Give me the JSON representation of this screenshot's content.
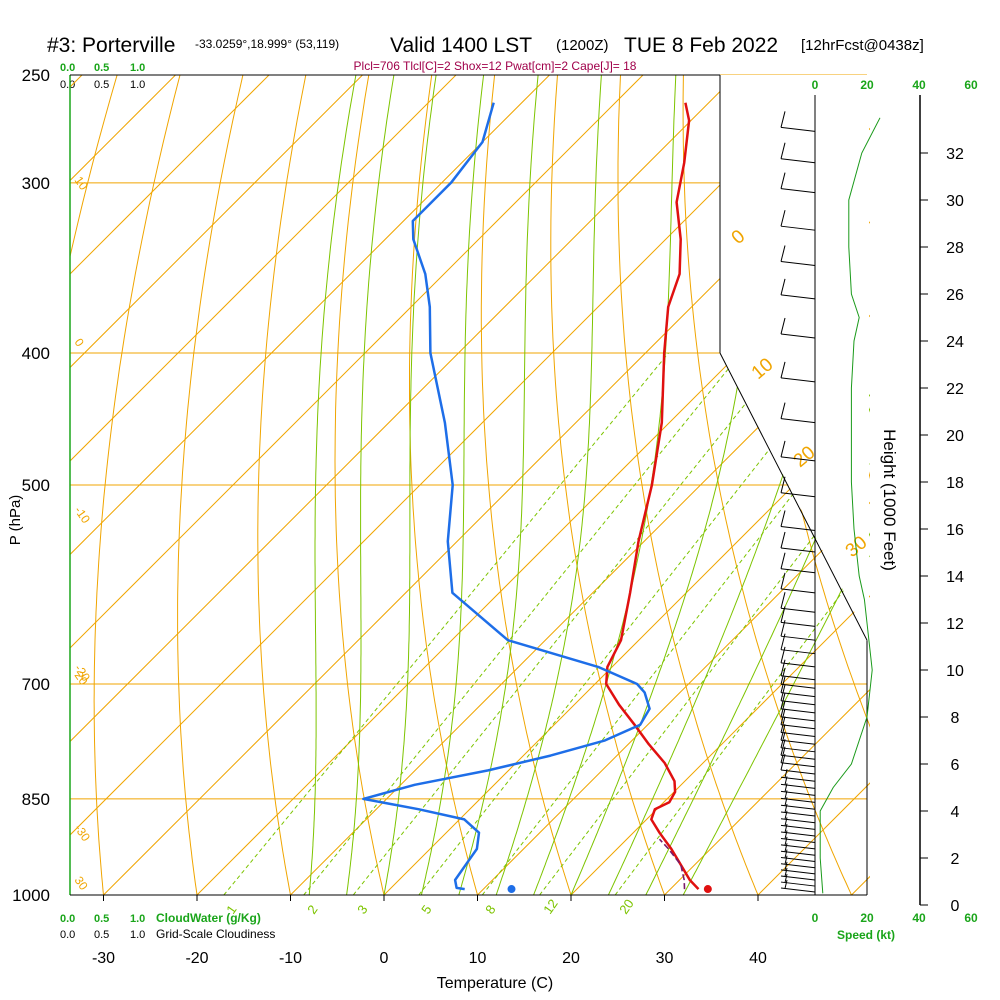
{
  "header": {
    "station": "#3: Porterville",
    "coords": "-33.0259°,18.999° (53,119)",
    "valid": "Valid 1400 LST",
    "utc": "(1200Z)",
    "date": "TUE 8 Feb 2022",
    "forecast": "[12hrFcst@0438z]",
    "indices": "Plcl=706 Tlcl[C]=2 Shox=12 Pwat[cm]=2 Cape[J]= 18"
  },
  "colors": {
    "isotherm": "#f0a500",
    "dry_adiabat": "#f0a500",
    "moist_adiabat": "#7dc400",
    "mixing_ratio": "#7dc400",
    "temperature": "#e01010",
    "dewpoint": "#1e6ee8",
    "parcel": "#7a1a6a",
    "wind_profile": "#1a9a1a",
    "labels_green": "#1aa51a",
    "indices": "#a0004a"
  },
  "chart_data": {
    "type": "line",
    "subtype": "skew-t log-p sounding",
    "xlabel": "Temperature (C)",
    "ylabel": "P (hPa)",
    "y2label": "Height (1000 Feet)",
    "x_ticks": [
      "-30",
      "-20",
      "-10",
      "0",
      "10",
      "20",
      "30",
      "40"
    ],
    "p_ticks": [
      "250",
      "300",
      "400",
      "500",
      "700",
      "850",
      "1000"
    ],
    "height_ticks": [
      "0",
      "2",
      "4",
      "6",
      "8",
      "10",
      "12",
      "14",
      "16",
      "18",
      "20",
      "22",
      "24",
      "26",
      "28",
      "30",
      "32"
    ],
    "xlim": [
      -34,
      52
    ],
    "ylim_hpa": [
      1000,
      250
    ],
    "isotherm_labels": [
      "30",
      "20",
      "10",
      "0",
      "-10",
      "-20",
      "-30"
    ],
    "dry_adiabat_labels": [
      "0",
      "10",
      "20",
      "30"
    ],
    "mixing_ratio_labels": [
      "1",
      "2",
      "3",
      "5",
      "8",
      "12",
      "20"
    ],
    "series": [
      {
        "name": "Temperature",
        "p": [
          990,
          975,
          950,
          925,
          900,
          880,
          865,
          855,
          840,
          825,
          800,
          775,
          750,
          725,
          700,
          680,
          650,
          600,
          550,
          500,
          450,
          400,
          370,
          350,
          330,
          310,
          290,
          270,
          262
        ],
        "values": [
          33,
          31.1,
          28.5,
          25.8,
          22.8,
          20.5,
          19.8,
          20.6,
          20.1,
          18.9,
          15.9,
          12.2,
          8.6,
          4.8,
          1.2,
          -0.5,
          -1.9,
          -6.0,
          -10.6,
          -15.2,
          -20.8,
          -28.0,
          -32.5,
          -34.8,
          -38.4,
          -42.8,
          -46.2,
          -50.2,
          -52.5
        ]
      },
      {
        "name": "Dewpoint",
        "p": [
          990,
          988,
          975,
          950,
          925,
          900,
          880,
          865,
          850,
          830,
          810,
          790,
          770,
          750,
          730,
          710,
          700,
          680,
          650,
          600,
          550,
          500,
          450,
          400,
          370,
          350,
          330,
          320,
          300,
          280,
          262
        ],
        "values": [
          8,
          7,
          6,
          5.5,
          5.0,
          3.5,
          0.5,
          -5.5,
          -12.5,
          -8.5,
          -2.2,
          2.9,
          7.1,
          9.2,
          8.5,
          6.2,
          4.5,
          -1.5,
          -14.0,
          -25.0,
          -31.0,
          -36.5,
          -44.0,
          -53.0,
          -58.0,
          -62.0,
          -67.0,
          -69.0,
          -69.0,
          -70.0,
          -73.0
        ]
      },
      {
        "name": "Parcel",
        "p": [
          990,
          975,
          950,
          925,
          910
        ],
        "values": [
          31.5,
          30.5,
          28.5,
          25.5,
          23.5
        ]
      }
    ],
    "surface_temperature": 34,
    "surface_dewpoint": 13,
    "cloud_scale_top": [
      "0.0",
      "0.5",
      "1.0"
    ],
    "cloud_scale_bottom": [
      "0.0",
      "0.5",
      "1.0"
    ],
    "cloudwater_label": "CloudWater (g/Kg)",
    "cloudiness_label": "Grid-Scale Cloudiness",
    "wind_speed_label": "Speed (kt)",
    "speed_ticks": [
      "0",
      "20",
      "40",
      "60"
    ],
    "wind_speed_profile": {
      "height_kft": [
        0.5,
        2,
        4,
        5,
        6,
        8,
        10,
        11,
        12,
        13,
        14,
        16,
        18,
        20,
        22,
        24,
        25,
        26,
        28,
        30,
        32,
        33.5
      ],
      "speed_kt": [
        3,
        2,
        2,
        7,
        14,
        20,
        22,
        21,
        20,
        19,
        17,
        15,
        14,
        14,
        14,
        15,
        17,
        14,
        13,
        13,
        18,
        25
      ]
    },
    "wind_barbs": {
      "pressure_hpa": [
        995,
        985,
        975,
        965,
        955,
        945,
        935,
        925,
        915,
        905,
        895,
        885,
        875,
        865,
        855,
        845,
        835,
        825,
        815,
        805,
        795,
        785,
        775,
        765,
        755,
        745,
        735,
        725,
        715,
        705,
        695,
        680,
        665,
        650,
        635,
        620,
        600,
        580,
        560,
        540,
        510,
        480,
        450,
        420,
        390,
        365,
        345,
        325,
        305,
        290,
        275
      ],
      "speed_kt": [
        5,
        5,
        5,
        5,
        5,
        5,
        5,
        5,
        5,
        5,
        5,
        5,
        5,
        5,
        5,
        5,
        5,
        5,
        10,
        10,
        10,
        10,
        10,
        10,
        10,
        10,
        10,
        10,
        10,
        10,
        10,
        10,
        10,
        10,
        10,
        10,
        10,
        10,
        10,
        10,
        10,
        10,
        10,
        10,
        10,
        10,
        10,
        10,
        10,
        10,
        10
      ]
    }
  }
}
